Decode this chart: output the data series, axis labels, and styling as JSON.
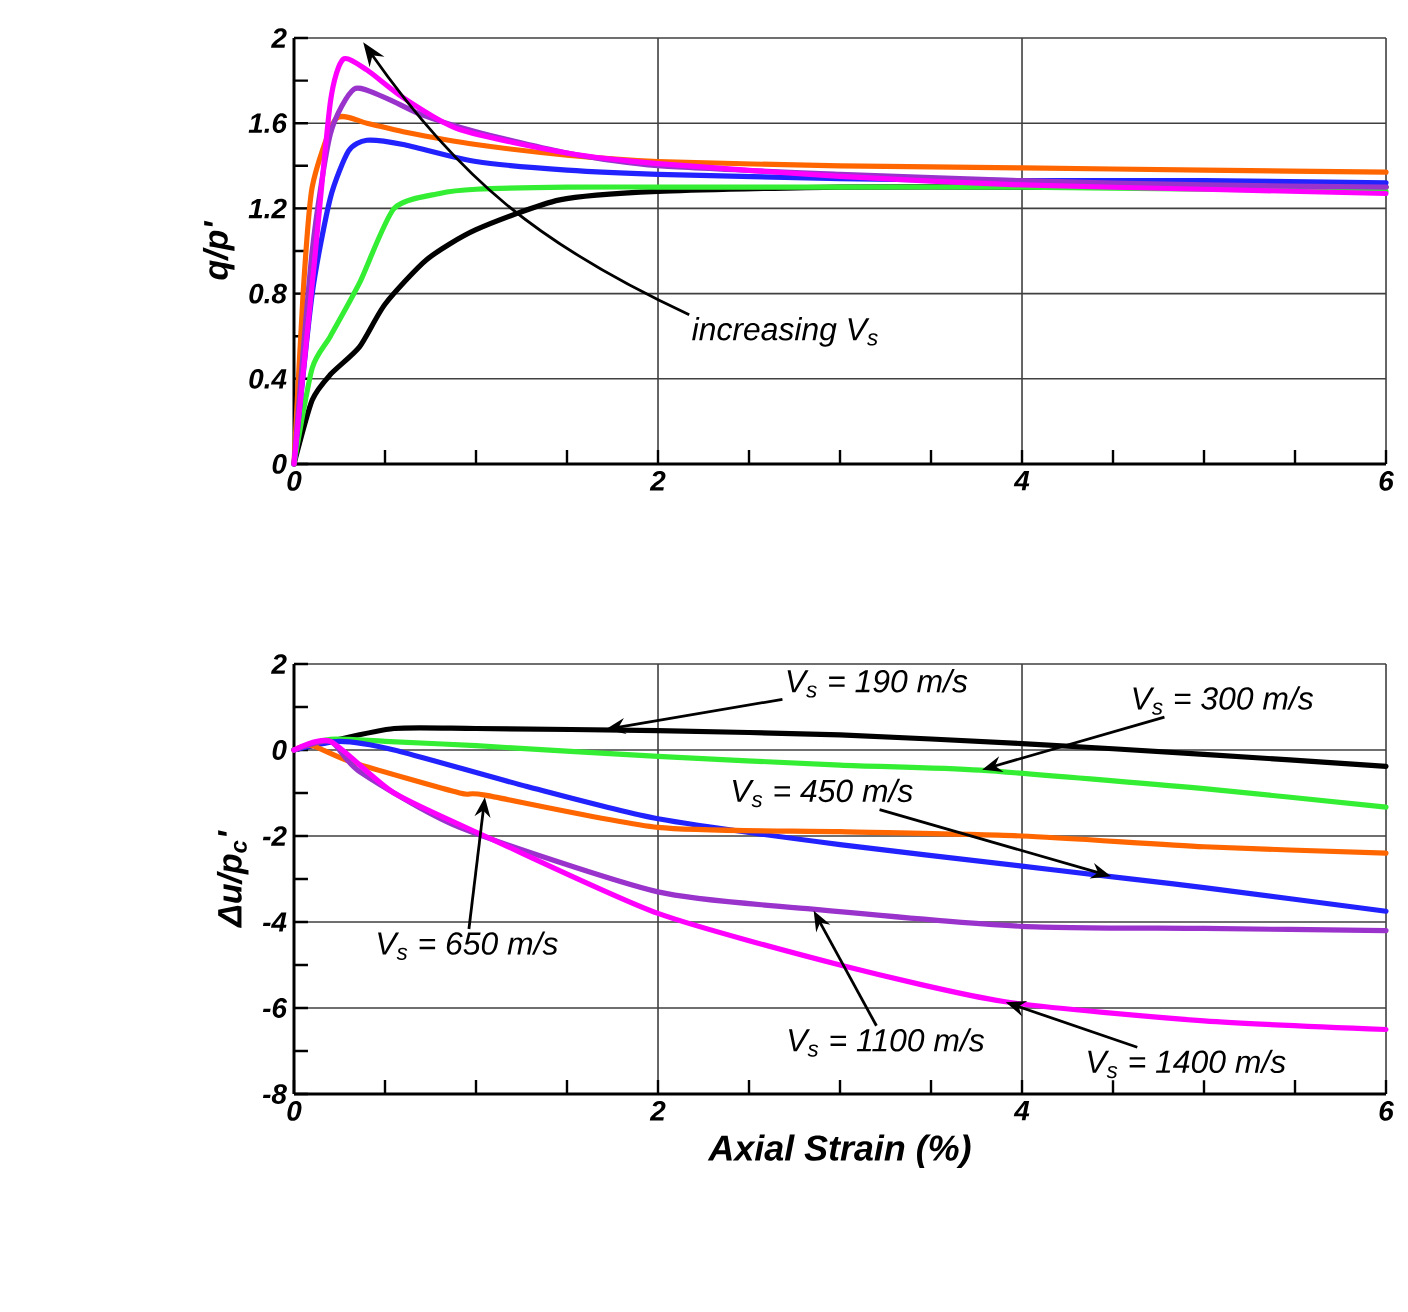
{
  "chart_data": [
    {
      "type": "line",
      "ylabel": "**q/p'**",
      "xlim": [
        0,
        6
      ],
      "ylim": [
        0,
        2
      ],
      "xticks": [
        0,
        2,
        4,
        6
      ],
      "yticks": [
        0,
        0.4,
        0.8,
        1.2,
        1.6,
        2
      ],
      "grid": true,
      "marker": "none",
      "line_style": "solid",
      "annotations": [
        "increasing V$_{s}$"
      ],
      "series": [
        {
          "color": "#000000",
          "x": [
            0,
            0.1,
            0.2,
            0.36,
            0.5,
            0.73,
            1.0,
            1.46,
            2,
            3,
            4,
            5,
            6
          ],
          "values": [
            0,
            0.3,
            0.42,
            0.55,
            0.75,
            0.96,
            1.1,
            1.24,
            1.28,
            1.3,
            1.3,
            1.3,
            1.3
          ]
        },
        {
          "color": "#33ee33",
          "x": [
            0,
            0.1,
            0.2,
            0.36,
            0.55,
            0.8,
            1.0,
            1.5,
            2,
            3,
            4,
            5,
            6
          ],
          "values": [
            0,
            0.45,
            0.6,
            0.85,
            1.2,
            1.27,
            1.29,
            1.3,
            1.3,
            1.3,
            1.3,
            1.29,
            1.28
          ]
        },
        {
          "color": "#2222ff",
          "x": [
            0,
            0.1,
            0.2,
            0.3,
            0.4,
            0.6,
            1.0,
            1.5,
            2,
            3,
            4,
            5,
            6
          ],
          "values": [
            0,
            0.8,
            1.25,
            1.47,
            1.52,
            1.5,
            1.42,
            1.38,
            1.36,
            1.34,
            1.33,
            1.33,
            1.32
          ]
        },
        {
          "color": "#ff6600",
          "x": [
            0,
            0.05,
            0.1,
            0.23,
            0.4,
            0.6,
            1.0,
            1.5,
            2,
            3,
            4,
            5,
            6
          ],
          "values": [
            0,
            0.8,
            1.3,
            1.62,
            1.6,
            1.56,
            1.5,
            1.45,
            1.42,
            1.4,
            1.39,
            1.38,
            1.37
          ]
        },
        {
          "color": "#9933cc",
          "x": [
            0,
            0.1,
            0.2,
            0.33,
            0.5,
            0.7,
            1.0,
            1.5,
            2,
            3,
            4,
            5,
            6
          ],
          "values": [
            0,
            1.0,
            1.55,
            1.76,
            1.72,
            1.64,
            1.56,
            1.46,
            1.4,
            1.36,
            1.33,
            1.31,
            1.3
          ]
        },
        {
          "color": "#ff00ff",
          "x": [
            0,
            0.11,
            0.2,
            0.27,
            0.4,
            0.6,
            0.91,
            1.5,
            2,
            3,
            4,
            5,
            6
          ],
          "values": [
            0,
            0.93,
            1.7,
            1.9,
            1.85,
            1.72,
            1.57,
            1.46,
            1.41,
            1.35,
            1.31,
            1.29,
            1.27
          ]
        }
      ]
    },
    {
      "type": "line",
      "xlabel": "Axial Strain (%)",
      "ylabel": "Δu/p$_{c}$'",
      "xlim": [
        0,
        6
      ],
      "ylim": [
        -8,
        2
      ],
      "xticks": [
        0,
        2,
        4,
        6
      ],
      "yticks": [
        -8,
        -6,
        -4,
        -2,
        0,
        2
      ],
      "grid": true,
      "marker": "none",
      "line_style": "solid",
      "annotations": [
        {
          "text": "V$_{s}$ = 190 m/s",
          "x": 1.7,
          "y": 0.47
        },
        {
          "text": "V$_{s}$ = 300 m/s",
          "x": 3.77,
          "y": -0.47
        },
        {
          "text": "V$_{s}$ = 450 m/s",
          "x": 4.5,
          "y": -2.95
        },
        {
          "text": "V$_{s}$ = 650 m/s",
          "x": 1.05,
          "y": -1.05
        },
        {
          "text": "V$_{s}$ = 1100 m/s",
          "x": 2.85,
          "y": -3.7
        },
        {
          "text": "V$_{s}$ = 1400 m/s",
          "x": 3.9,
          "y": -5.85
        }
      ],
      "series": [
        {
          "color": "#000000",
          "x": [
            0,
            0.2,
            0.55,
            1,
            2,
            3,
            4,
            5,
            6
          ],
          "values": [
            0,
            0.2,
            0.5,
            0.5,
            0.45,
            0.35,
            0.15,
            -0.1,
            -0.38
          ]
        },
        {
          "color": "#33ee33",
          "x": [
            0,
            0.2,
            0.5,
            1,
            2,
            3,
            3.77,
            5,
            6
          ],
          "values": [
            0,
            0.25,
            0.2,
            0.1,
            -0.15,
            -0.35,
            -0.47,
            -0.9,
            -1.33
          ]
        },
        {
          "color": "#2222ff",
          "x": [
            0,
            0.25,
            0.55,
            1.28,
            2,
            3,
            4,
            4.5,
            5,
            6
          ],
          "values": [
            0,
            0.2,
            0,
            -0.85,
            -1.6,
            -2.2,
            -2.7,
            -2.95,
            -3.2,
            -3.75
          ]
        },
        {
          "color": "#ff6600",
          "x": [
            0,
            0.1,
            0.33,
            0.91,
            1.05,
            2,
            3,
            4,
            5,
            6
          ],
          "values": [
            0,
            0.1,
            -0.3,
            -1.0,
            -1.05,
            -1.8,
            -1.9,
            -2.0,
            -2.25,
            -2.4
          ]
        },
        {
          "color": "#9933cc",
          "x": [
            0,
            0.2,
            0.36,
            0.91,
            2,
            2.85,
            4,
            5,
            6
          ],
          "values": [
            0,
            0.2,
            -0.5,
            -1.8,
            -3.3,
            -3.7,
            -4.1,
            -4.15,
            -4.2
          ]
        },
        {
          "color": "#ff00ff",
          "x": [
            0,
            0.2,
            0.55,
            1.1,
            2,
            3,
            3.9,
            5,
            6
          ],
          "values": [
            0,
            0.2,
            -1.0,
            -2.1,
            -3.8,
            -5.0,
            -5.85,
            -6.3,
            -6.5
          ]
        }
      ]
    }
  ]
}
